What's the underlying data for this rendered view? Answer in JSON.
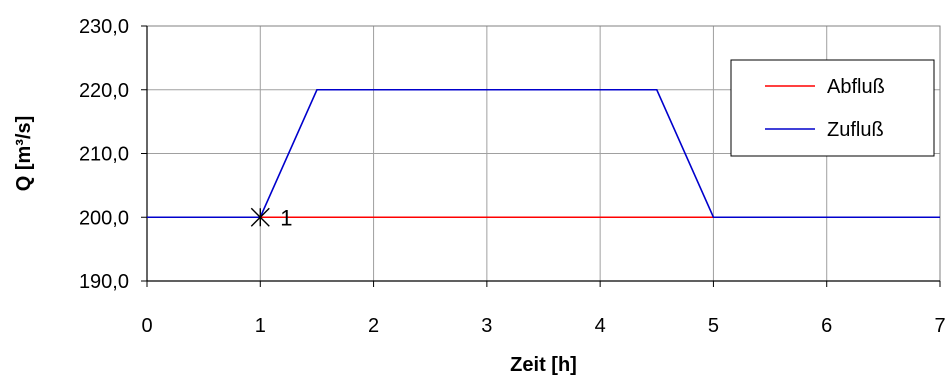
{
  "chart_data": {
    "type": "line",
    "xlabel": "Zeit [h]",
    "ylabel": "Q [m³/s]",
    "xlim": [
      0,
      7
    ],
    "ylim": [
      190,
      230
    ],
    "x_ticks": [
      0,
      1,
      2,
      3,
      4,
      5,
      6,
      7
    ],
    "y_ticks": [
      190,
      200,
      210,
      220,
      230
    ],
    "y_tick_labels": [
      "190,0",
      "200,0",
      "210,0",
      "220,0",
      "230,0"
    ],
    "grid": true,
    "legend_position": "top-right",
    "series": [
      {
        "name": "Abfluß",
        "color": "#ff0000",
        "points": [
          [
            0,
            200
          ],
          [
            7,
            200
          ]
        ]
      },
      {
        "name": "Zufluß",
        "color": "#0000cc",
        "points": [
          [
            0,
            200
          ],
          [
            1,
            200
          ],
          [
            1.5,
            220
          ],
          [
            4.5,
            220
          ],
          [
            5,
            200
          ],
          [
            7,
            200
          ]
        ]
      }
    ],
    "annotations": [
      {
        "x": 1,
        "y": 200,
        "marker": "asterisk",
        "label": "1"
      }
    ]
  }
}
